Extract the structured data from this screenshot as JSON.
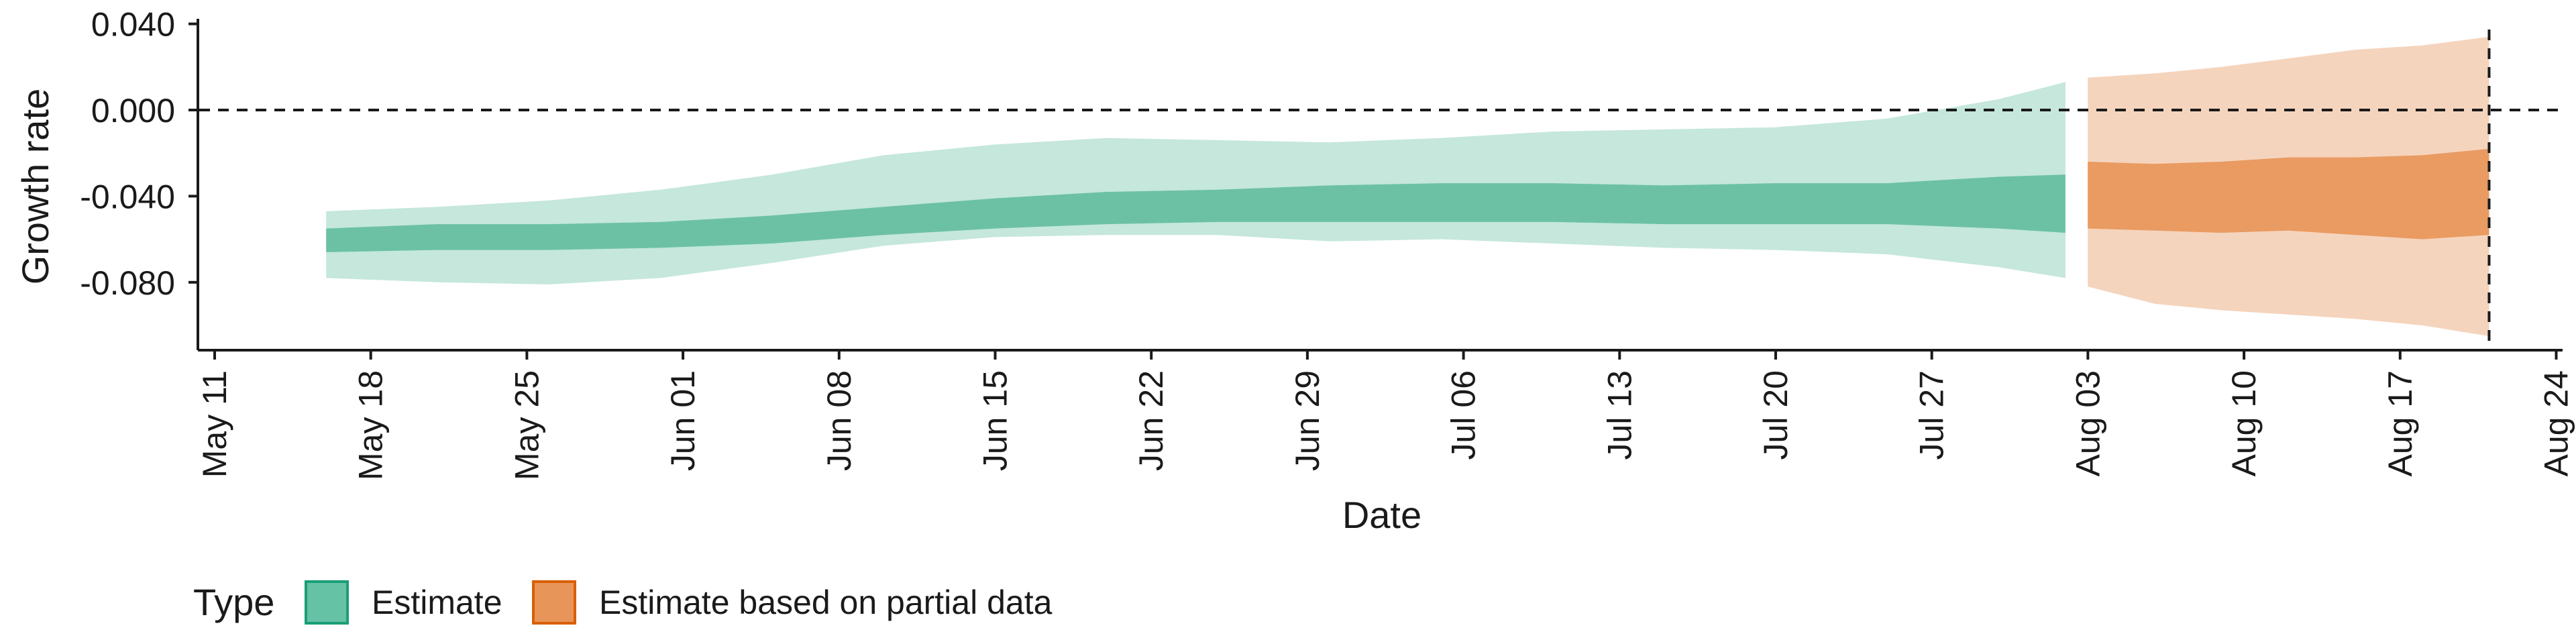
{
  "chart_data": {
    "type": "area",
    "xlabel": "Date",
    "ylabel": "Growth rate",
    "x_tick_labels": [
      "May 11",
      "May 18",
      "May 25",
      "Jun 01",
      "Jun 08",
      "Jun 15",
      "Jun 22",
      "Jun 29",
      "Jul 06",
      "Jul 13",
      "Jul 20",
      "Jul 27",
      "Aug 03",
      "Aug 10",
      "Aug 17",
      "Aug 24"
    ],
    "y_tick_labels": [
      "0.040",
      "0.000",
      "-0.040",
      "-0.080"
    ],
    "ylim": [
      -0.112,
      0.041
    ],
    "xlim": [
      "2020-05-10",
      "2020-08-24"
    ],
    "reference_hline": 0.0,
    "reference_vline": "2020-08-20",
    "legend": {
      "title": "Type",
      "position": "bottom-left",
      "entries": [
        {
          "label": "Estimate",
          "color": "#66c2a5",
          "border": "#1b9e77"
        },
        {
          "label": "Estimate based on partial data",
          "color": "#e8955a",
          "border": "#d95f02"
        }
      ]
    },
    "series": [
      {
        "name": "Estimate",
        "color": "#6cc1a5",
        "color_outer": "#c5e7dc",
        "x": [
          "2020-05-15",
          "2020-05-20",
          "2020-05-25",
          "2020-05-30",
          "2020-06-04",
          "2020-06-09",
          "2020-06-14",
          "2020-06-19",
          "2020-06-24",
          "2020-06-29",
          "2020-07-04",
          "2020-07-09",
          "2020-07-14",
          "2020-07-19",
          "2020-07-24",
          "2020-07-29",
          "2020-08-01"
        ],
        "lower_90": [
          -0.078,
          -0.08,
          -0.081,
          -0.078,
          -0.071,
          -0.063,
          -0.059,
          -0.058,
          -0.058,
          -0.061,
          -0.06,
          -0.062,
          -0.064,
          -0.065,
          -0.067,
          -0.073,
          -0.078
        ],
        "lower_50": [
          -0.066,
          -0.065,
          -0.065,
          -0.064,
          -0.062,
          -0.058,
          -0.055,
          -0.053,
          -0.052,
          -0.052,
          -0.052,
          -0.052,
          -0.053,
          -0.053,
          -0.053,
          -0.055,
          -0.057
        ],
        "upper_50": [
          -0.055,
          -0.053,
          -0.053,
          -0.052,
          -0.049,
          -0.045,
          -0.041,
          -0.038,
          -0.037,
          -0.035,
          -0.034,
          -0.034,
          -0.035,
          -0.034,
          -0.034,
          -0.031,
          -0.03
        ],
        "upper_90": [
          -0.047,
          -0.045,
          -0.042,
          -0.037,
          -0.03,
          -0.021,
          -0.016,
          -0.013,
          -0.014,
          -0.015,
          -0.013,
          -0.01,
          -0.009,
          -0.008,
          -0.004,
          0.005,
          0.013
        ]
      },
      {
        "name": "Estimate based on partial data",
        "color": "#e99b62",
        "color_outer": "#f5d4bd",
        "x": [
          "2020-08-02",
          "2020-08-05",
          "2020-08-08",
          "2020-08-11",
          "2020-08-14",
          "2020-08-17",
          "2020-08-20"
        ],
        "lower_90": [
          -0.082,
          -0.09,
          -0.093,
          -0.095,
          -0.097,
          -0.1,
          -0.105
        ],
        "lower_50": [
          -0.055,
          -0.056,
          -0.057,
          -0.056,
          -0.058,
          -0.06,
          -0.058
        ],
        "upper_50": [
          -0.024,
          -0.025,
          -0.024,
          -0.022,
          -0.022,
          -0.021,
          -0.018
        ],
        "upper_90": [
          0.015,
          0.017,
          0.02,
          0.024,
          0.028,
          0.03,
          0.034
        ]
      }
    ]
  }
}
